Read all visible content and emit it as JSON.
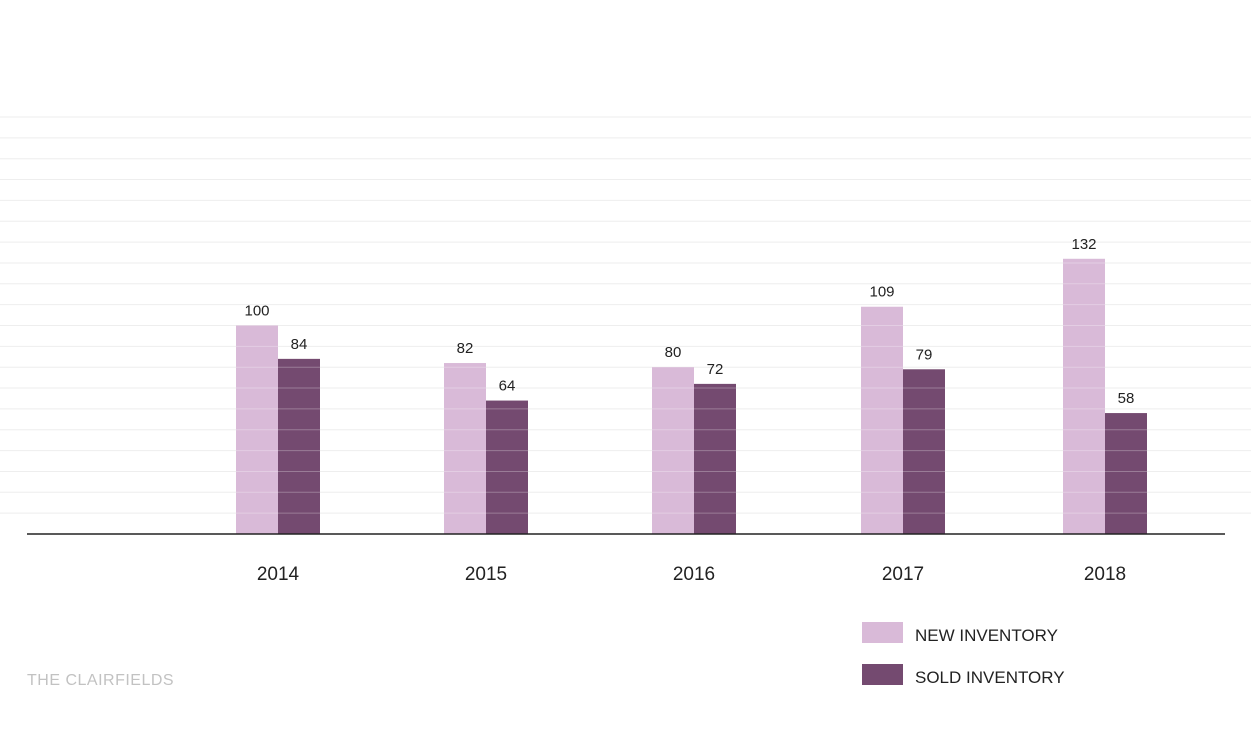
{
  "chart_data": {
    "type": "bar",
    "categories": [
      "2014",
      "2015",
      "2016",
      "2017",
      "2018"
    ],
    "series": [
      {
        "name": "NEW INVENTORY",
        "values": [
          100,
          82,
          80,
          109,
          132
        ],
        "color": "#d9bad8"
      },
      {
        "name": "SOLD INVENTORY",
        "values": [
          84,
          64,
          72,
          79,
          58
        ],
        "color": "#744a70"
      }
    ],
    "title": "",
    "xlabel": "",
    "ylabel": "",
    "ylim": [
      0,
      200
    ],
    "grid": true,
    "legend": "bottom-right"
  },
  "watermark": "THE CLAIRFIELDS"
}
